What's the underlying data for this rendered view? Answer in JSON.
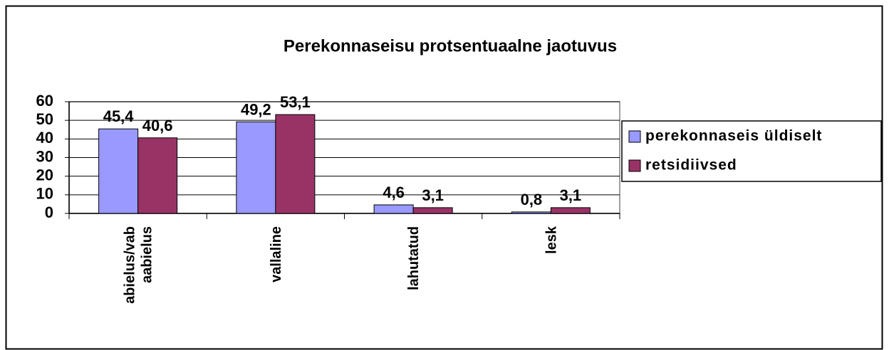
{
  "chart_data": {
    "type": "bar",
    "title": "Perekonnaseisu protsentuaalne jaotuvus",
    "categories": [
      "abielus/vab aabielus",
      "vallaline",
      "lahutatud",
      "lesk"
    ],
    "series": [
      {
        "name": "perekonnaseis üldiselt",
        "color": "#9999ff",
        "values": [
          45.4,
          49.2,
          4.6,
          0.8
        ],
        "value_labels": [
          "45,4",
          "49,2",
          "4,6",
          "0,8"
        ]
      },
      {
        "name": "retsidiivsed",
        "color": "#993366",
        "values": [
          40.6,
          53.1,
          3.1,
          3.1
        ],
        "value_labels": [
          "40,6",
          "53,1",
          "3,1",
          "3,1"
        ]
      }
    ],
    "ylim": [
      0,
      60
    ],
    "yticks": [
      0,
      10,
      20,
      30,
      40,
      50,
      60
    ],
    "grid": true,
    "legend": "right"
  }
}
